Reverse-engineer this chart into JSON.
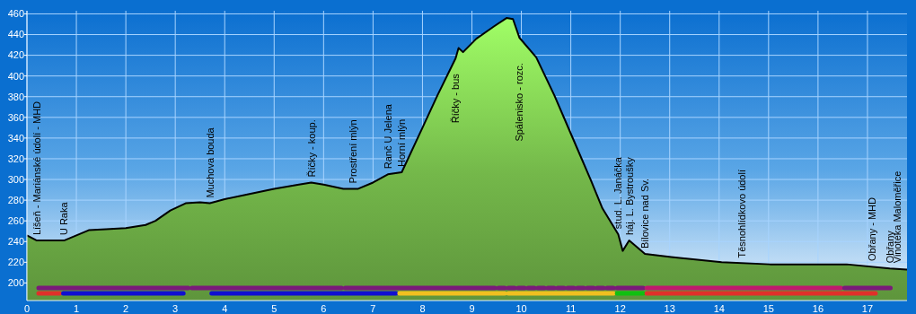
{
  "chart_data": {
    "type": "area",
    "xlim": [
      0,
      17.8
    ],
    "ylim": [
      183,
      463
    ],
    "xticks": [
      0,
      1,
      2,
      3,
      4,
      5,
      6,
      7,
      8,
      9,
      10,
      11,
      12,
      13,
      14,
      15,
      16,
      17
    ],
    "yticks": [
      200,
      220,
      240,
      260,
      280,
      300,
      320,
      340,
      360,
      380,
      400,
      420,
      440,
      460
    ],
    "grid": true,
    "series": [
      {
        "color": "#74b84a",
        "x": [
          0,
          0.2,
          0.75,
          1.0,
          1.25,
          1.6,
          2.0,
          2.4,
          2.6,
          2.9,
          3.21,
          3.5,
          3.7,
          4.0,
          4.5,
          5.0,
          5.5,
          5.75,
          6.0,
          6.4,
          6.7,
          7.0,
          7.3,
          7.58,
          8.0,
          8.3,
          8.67,
          8.73,
          8.82,
          9.09,
          9.45,
          9.7,
          9.83,
          9.96,
          10.3,
          10.67,
          11.03,
          11.4,
          11.64,
          11.96,
          12.05,
          12.18,
          12.5,
          13.03,
          14.05,
          15.03,
          16.58,
          17.45,
          17.8
        ],
        "values": [
          246,
          241,
          241,
          246,
          251,
          252,
          253,
          256,
          260,
          270,
          277,
          278,
          277,
          281,
          286,
          291,
          295,
          297,
          295,
          291,
          291,
          297,
          305,
          307,
          350,
          381,
          417,
          427,
          423,
          436,
          448,
          456,
          455,
          437,
          418,
          381,
          341,
          300,
          272,
          247,
          231,
          241,
          228,
          225,
          220,
          218,
          218,
          214,
          213
        ]
      }
    ],
    "annotations": [
      {
        "text": "Líšeň - Mariánské údolí - MHD",
        "x": 0.2,
        "y": 241
      },
      {
        "text": "U Raka",
        "x": 0.75,
        "y": 241
      },
      {
        "text": "Muchova bouda",
        "x": 3.7,
        "y": 277
      },
      {
        "text": "Říčky - koup.",
        "x": 5.75,
        "y": 297
      },
      {
        "text": "Prostření mlýn",
        "x": 6.6,
        "y": 291
      },
      {
        "text": "Ranč U Jelena",
        "x": 7.3,
        "y": 305
      },
      {
        "text": "Horní mlýn",
        "x": 7.58,
        "y": 307
      },
      {
        "text": "Říčky - bus",
        "x": 8.67,
        "y": 417
      },
      {
        "text": "Spálenisko - rozc.",
        "x": 9.96,
        "y": 437
      },
      {
        "text": "stud. L. Janáčka",
        "x": 11.96,
        "y": 247
      },
      {
        "text": "háj. L. Bystroušky",
        "x": 12.18,
        "y": 241
      },
      {
        "text": "Bílovice nad Sv.",
        "x": 12.5,
        "y": 228
      },
      {
        "text": "Těsnohlídkovo údolí",
        "x": 14.45,
        "y": 219
      },
      {
        "text": "Obřany - MHD",
        "x": 17.1,
        "y": 216
      },
      {
        "text": "Obřany",
        "x": 17.45,
        "y": 214
      },
      {
        "text": "Vinotéka Maloměřice",
        "x": 17.6,
        "y": 214
      }
    ]
  }
}
